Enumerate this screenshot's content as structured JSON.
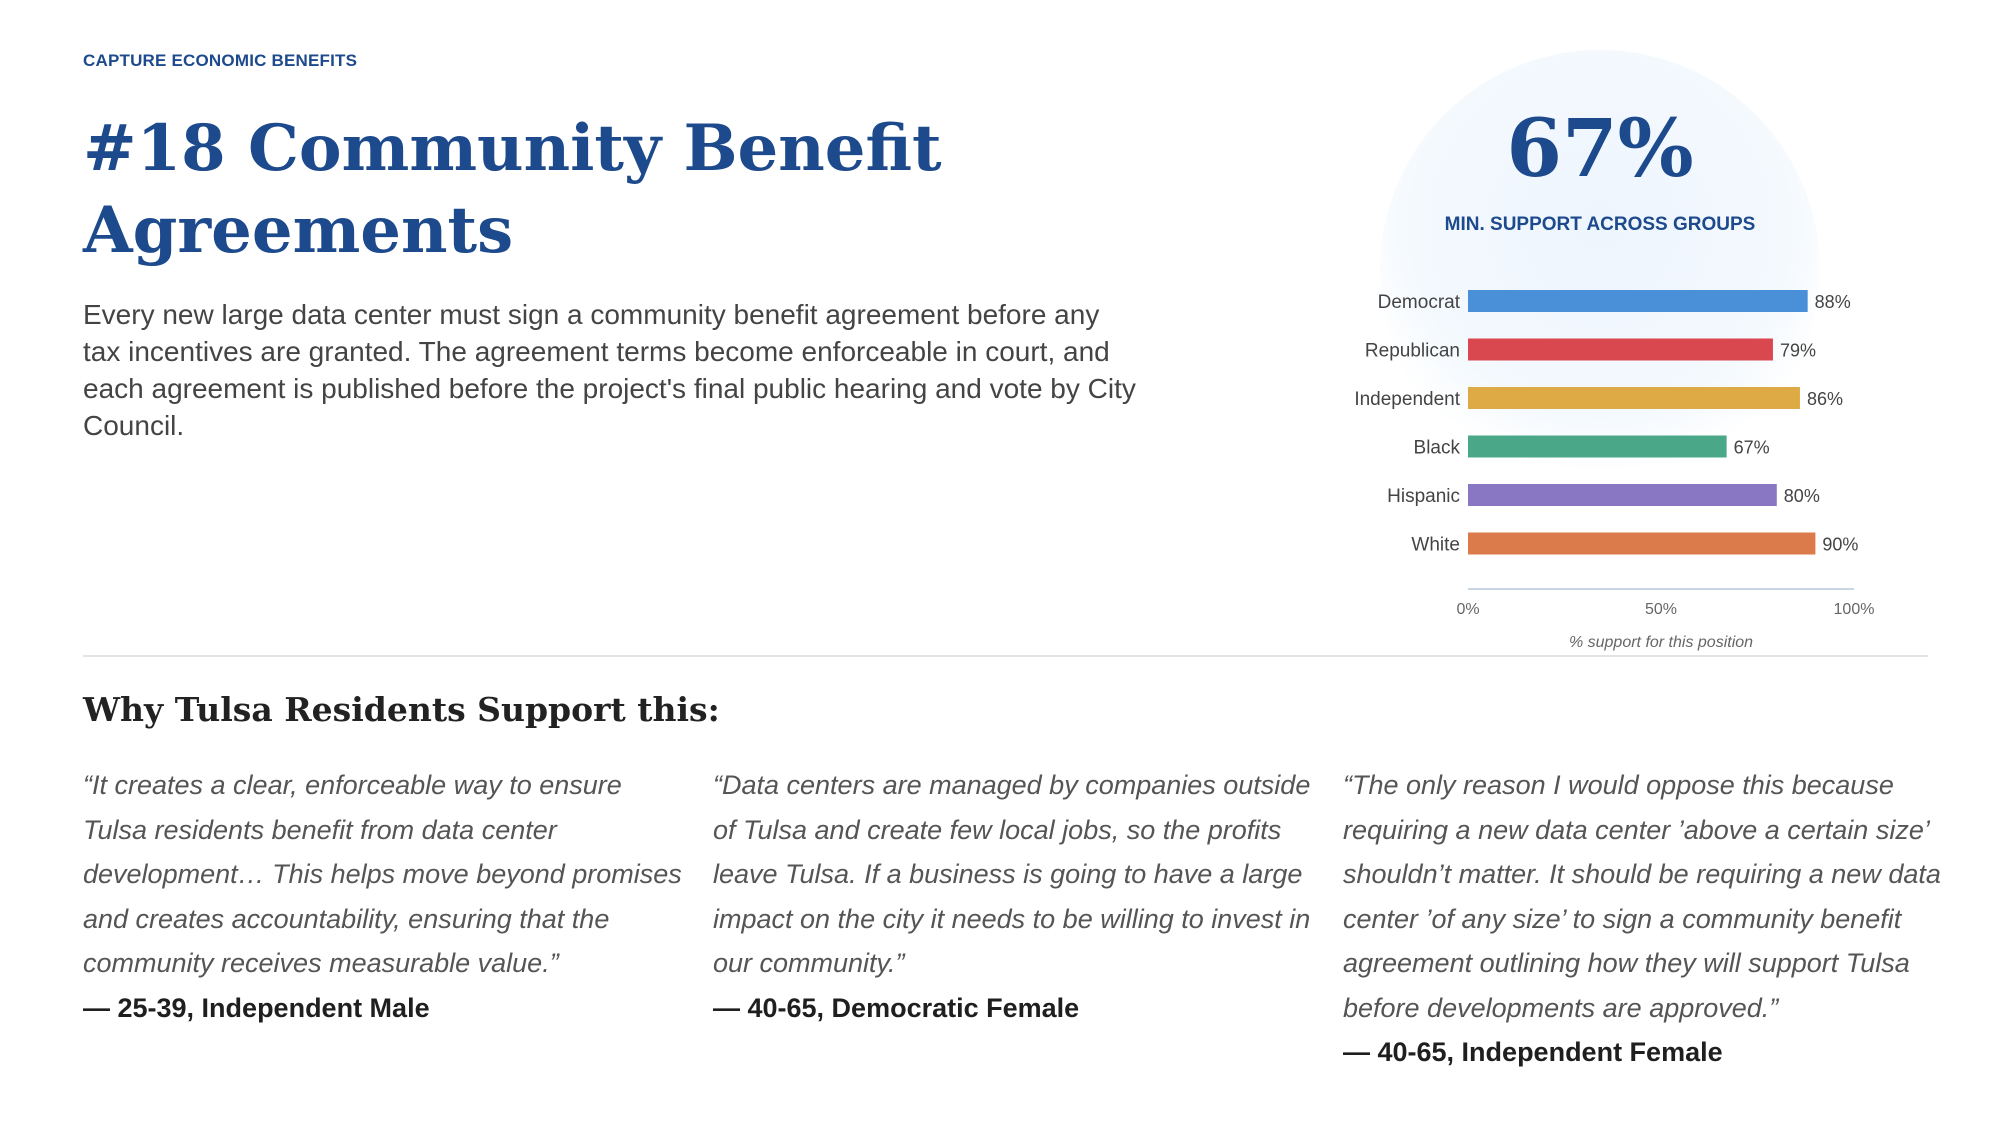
{
  "header": {
    "eyebrow": "CAPTURE ECONOMIC BENEFITS",
    "title": "#18 Community Benefit Agreements",
    "description": "Every new large data center must sign a community benefit agreement before any tax incentives are granted. The agreement terms become enforceable in court, and each agreement is published before the project's final public hearing and vote by City Council."
  },
  "stat": {
    "value": "67%",
    "label": "MIN. SUPPORT ACROSS GROUPS"
  },
  "chart_data": {
    "type": "bar",
    "orientation": "horizontal",
    "categories": [
      "Democrat",
      "Republican",
      "Independent",
      "Black",
      "Hispanic",
      "White"
    ],
    "values": [
      88,
      79,
      86,
      67,
      80,
      90
    ],
    "value_labels": [
      "88%",
      "79%",
      "86%",
      "67%",
      "80%",
      "90%"
    ],
    "colors": [
      "#4a90d9",
      "#d9484f",
      "#deaa45",
      "#4aa888",
      "#8a77c4",
      "#db7a4b"
    ],
    "xlim": [
      0,
      100
    ],
    "xticks": [
      0,
      50,
      100
    ],
    "xtick_labels": [
      "0%",
      "50%",
      "100%"
    ],
    "xlabel": "% support for this position",
    "ylabel": "",
    "grid": false,
    "legend": "none"
  },
  "why": {
    "heading": "Why Tulsa Residents Support this:",
    "quotes": [
      {
        "text": "“It creates a clear, enforceable way to ensure Tulsa residents benefit from data center development… This helps move beyond promises and creates accountability, ensuring that the community receives measurable value.”",
        "attribution": "— 25-39, Independent Male"
      },
      {
        "text": "“Data centers are managed by companies outside of Tulsa and create few local jobs, so the profits leave Tulsa. If a business is going to have a large impact on the city it needs to be willing to invest in our community.”",
        "attribution": "— 40-65, Democratic Female"
      },
      {
        "text": "“The only reason I would oppose this because requiring a new data center ’above a certain size’ shouldn’t matter. It should be requiring a new data center ’of any size’ to sign a community benefit agreement outlining how they will support Tulsa before developments are approved.”",
        "attribution": "— 40-65, Independent Female"
      }
    ]
  },
  "colors": {
    "brand_navy": "#1d4a8c"
  }
}
